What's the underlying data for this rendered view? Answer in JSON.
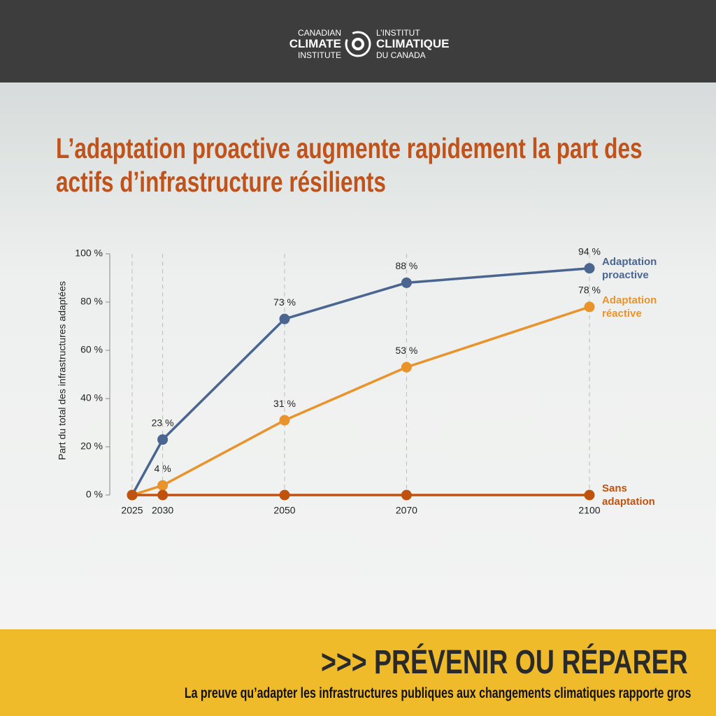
{
  "header": {
    "logo_en": [
      "CANADIAN",
      "CLIMATE",
      "INSTITUTE"
    ],
    "logo_fr": [
      "L’INSTITUT",
      "CLIMATIQUE",
      "DU CANADA"
    ]
  },
  "chart_data": {
    "type": "line",
    "title": "L’adaptation proactive augmente rapidement la part des actifs d’infrastructure résilients",
    "y_label": "Part du total des infrastructures adaptées",
    "x": [
      2025,
      2030,
      2050,
      2070,
      2100
    ],
    "xlim": [
      2025,
      2100
    ],
    "xticks": [
      2025,
      2030,
      2050,
      2070,
      2100
    ],
    "ylim": [
      0,
      100
    ],
    "yticks": [
      {
        "value": 0,
        "label": "0 %"
      },
      {
        "value": 20,
        "label": "20 %"
      },
      {
        "value": 40,
        "label": "40 %"
      },
      {
        "value": 60,
        "label": "60 %"
      },
      {
        "value": 80,
        "label": "80 %"
      },
      {
        "value": 100,
        "label": "100 %"
      }
    ],
    "grid": true,
    "series": [
      {
        "name": "Adaptation proactive",
        "color": "#4a6690",
        "values": [
          0,
          23,
          73,
          88,
          94
        ],
        "value_labels": [
          null,
          "23 %",
          "73 %",
          "88 %",
          "94 %"
        ]
      },
      {
        "name": "Adaptation réactive",
        "color": "#e8932b",
        "values": [
          0,
          4,
          31,
          53,
          78
        ],
        "value_labels": [
          null,
          "4 %",
          "31 %",
          "53 %",
          "78 %"
        ]
      },
      {
        "name": "Sans adaptation",
        "color": "#c0520f",
        "values": [
          0,
          0,
          0,
          0,
          0
        ]
      }
    ]
  },
  "footer": {
    "title": ">>> PRÉVENIR OU RÉPARER",
    "subtitle": "La preuve qu’adapter les infrastructures publiques aux changements climatiques rapporte gros"
  }
}
